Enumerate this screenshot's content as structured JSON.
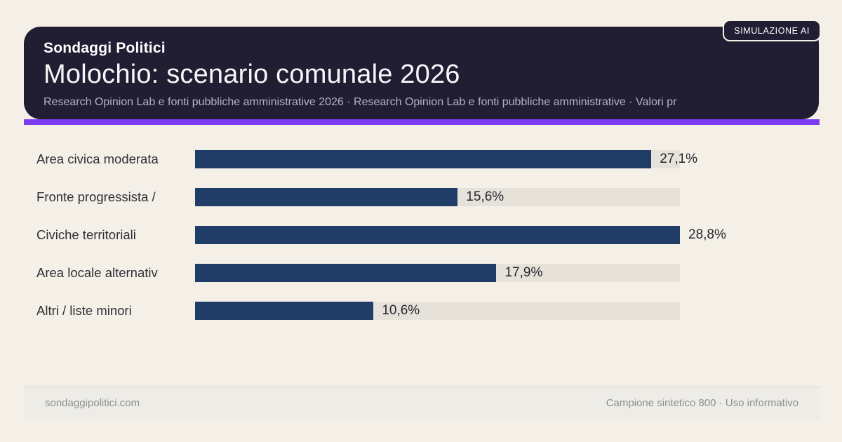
{
  "badge": {
    "label": "SIMULAZIONE AI"
  },
  "header": {
    "kicker": "Sondaggi Politici",
    "title": "Molochio: scenario comunale 2026",
    "subtitle": "Research Opinion Lab e fonti pubbliche amministrative 2026 · Research Opinion Lab e fonti pubbliche amministrative · Valori pr"
  },
  "chart_data": {
    "type": "bar",
    "orientation": "horizontal",
    "title": "Molochio: scenario comunale 2026",
    "categories": [
      "Area civica moderata",
      "Fronte progressista /",
      "Civiche territoriali",
      "Area locale alternativ",
      "Altri / liste minori"
    ],
    "values": [
      27.1,
      15.6,
      28.8,
      17.9,
      10.6
    ],
    "value_labels": [
      "27,1%",
      "15,6%",
      "28,8%",
      "17,9%",
      "10,6%"
    ],
    "unit": "%",
    "xlim": [
      0,
      28.8
    ],
    "grid": false,
    "legend": false,
    "bar_color": "#1f3d66",
    "track_color": "#e6e2da"
  },
  "footer": {
    "left": "sondaggipolitici.com",
    "right": "Campione sintetico 800 · Uso informativo"
  },
  "colors": {
    "background": "#f5f0e7",
    "header_bg": "#211d32",
    "accent": "#7d3bf0",
    "bar": "#1f3d66",
    "track": "#e6e2da",
    "label_text": "#2f2f38",
    "subtitle_text": "#b2b4c2",
    "footer_bg": "#edece7",
    "footer_text": "#8e8e93"
  }
}
